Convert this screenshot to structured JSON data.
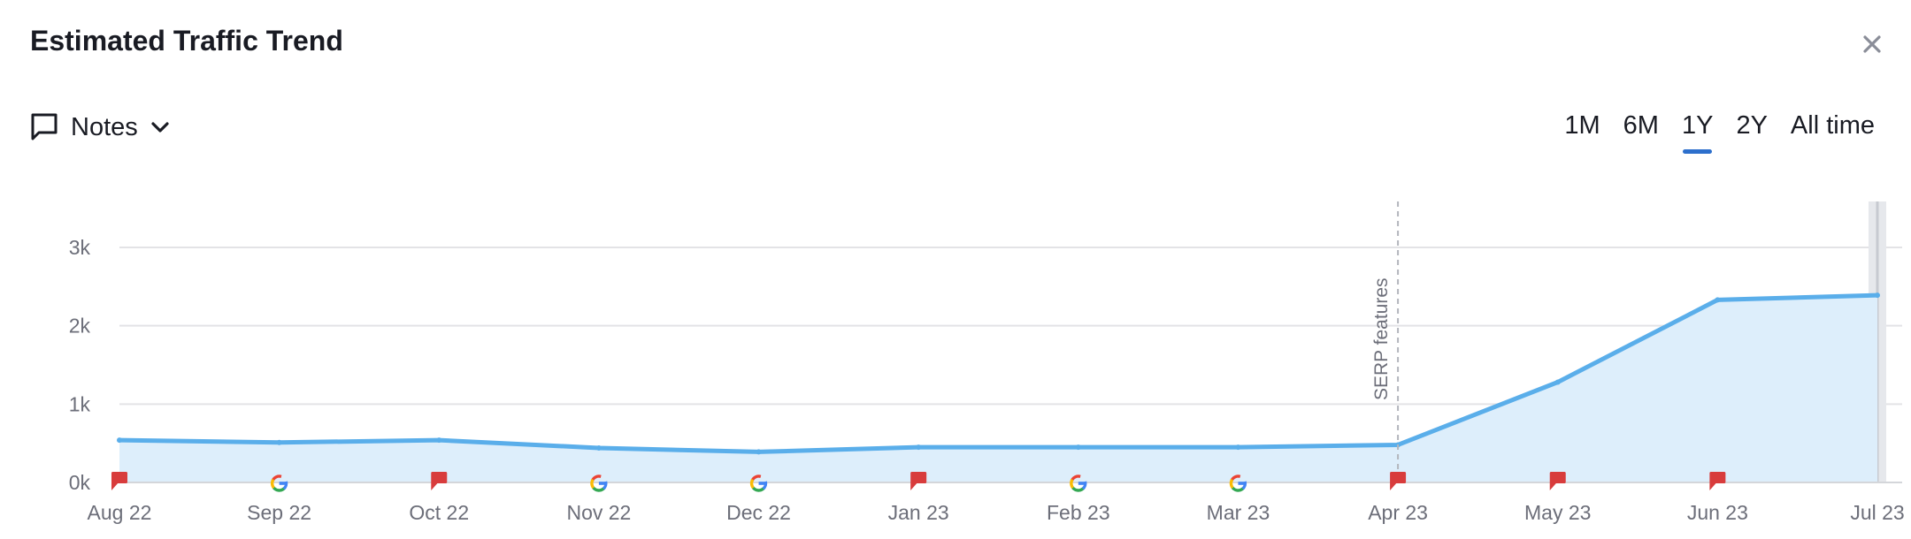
{
  "header": {
    "title": "Estimated Traffic Trend",
    "close_icon": "close-icon"
  },
  "notes": {
    "label": "Notes",
    "icon": "notes-icon",
    "chevron": "chevron-down-icon"
  },
  "ranges": {
    "items": [
      "1M",
      "6M",
      "1Y",
      "2Y",
      "All time"
    ],
    "active": "1Y"
  },
  "colors": {
    "line": "#5aaeea",
    "area": "#ddeefb",
    "grid": "#e3e3e6",
    "accent": "#2d6fcc",
    "flag": "#d83c3c"
  },
  "chart_data": {
    "type": "area",
    "title": "",
    "xlabel": "",
    "ylabel": "",
    "x": [
      "Aug 22",
      "Sep 22",
      "Oct 22",
      "Nov 22",
      "Dec 22",
      "Jan 23",
      "Feb 23",
      "Mar 23",
      "Apr 23",
      "May 23",
      "Jun 23",
      "Jul 23"
    ],
    "series": [
      {
        "values": [
          540,
          510,
          540,
          440,
          390,
          450,
          450,
          450,
          480,
          1280,
          2330,
          2390
        ]
      }
    ],
    "ylim": [
      0,
      3000
    ],
    "yticks": [
      "0k",
      "1k",
      "2k",
      "3k"
    ],
    "grid": true,
    "markers": [
      "flag",
      "google",
      "flag",
      "google",
      "google",
      "flag",
      "google",
      "google",
      "flag",
      "flag",
      "flag",
      null
    ],
    "annotations": [
      {
        "x": "Apr 23",
        "label": "SERP features"
      }
    ]
  }
}
